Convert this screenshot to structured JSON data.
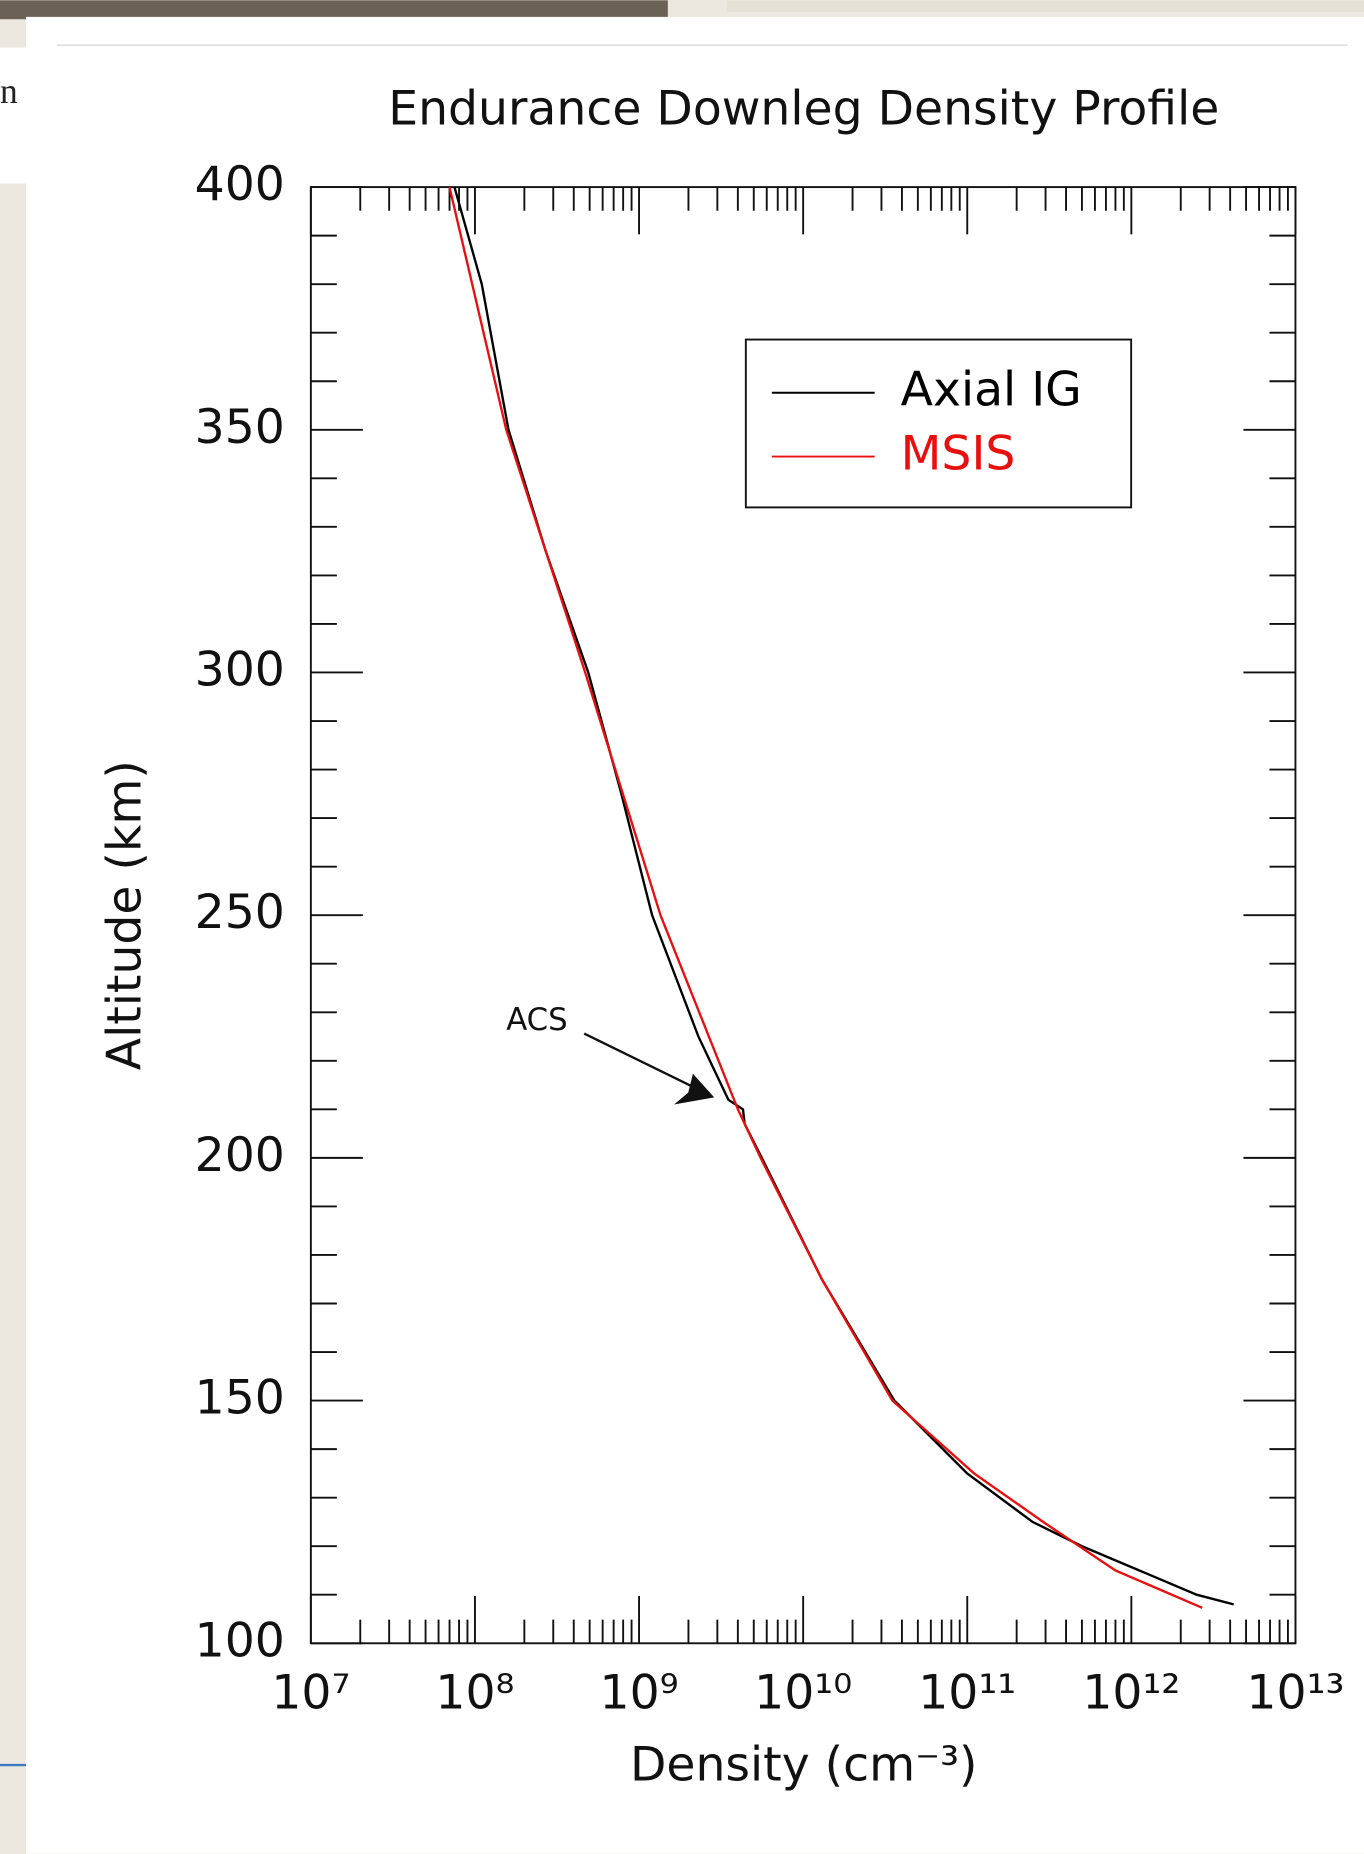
{
  "fragments": {
    "side_text": "n"
  },
  "chart_data": {
    "type": "line",
    "title": "Endurance Downleg Density Profile",
    "x_label": "Density (cm⁻³)",
    "y_label": "Altitude (km)",
    "x_log": true,
    "xlim": [
      10000000,
      10000000000000
    ],
    "xticks": [
      {
        "value": 10000000,
        "label": "10⁷"
      },
      {
        "value": 100000000,
        "label": "10⁸"
      },
      {
        "value": 1000000000,
        "label": "10⁹"
      },
      {
        "value": 10000000000,
        "label": "10¹⁰"
      },
      {
        "value": 100000000000,
        "label": "10¹¹"
      },
      {
        "value": 1000000000000,
        "label": "10¹²"
      },
      {
        "value": 10000000000000,
        "label": "10¹³"
      }
    ],
    "ylim": [
      100,
      400
    ],
    "yticks": [
      100,
      150,
      200,
      250,
      300,
      350,
      400
    ],
    "grid": false,
    "legend": "upper right",
    "annotations": [
      {
        "text": "ACS",
        "x": 4000000000,
        "y": 211
      }
    ],
    "series": [
      {
        "name": "Axial IG",
        "color": "#000000",
        "x": [
          75000000,
          110000000,
          160000000,
          270000000,
          490000000,
          780000000,
          1200000000,
          2300000000,
          3500000000,
          4300000000,
          4400000000,
          5600000000,
          13000000000,
          36000000000,
          100000000000,
          250000000000,
          500000000000,
          2500000000000,
          4200000000000
        ],
        "values": [
          400,
          380,
          350,
          325,
          300,
          275,
          250,
          225,
          212,
          210,
          207,
          200,
          175,
          150,
          135,
          125,
          120,
          110,
          108
        ]
      },
      {
        "name": "MSIS",
        "color": "#e8100f",
        "x": [
          70000000,
          155000000,
          470000000,
          1350000000,
          4000000000,
          5500000000,
          13000000000,
          35000000000,
          110000000000,
          290000000000,
          800000000000,
          2700000000000
        ],
        "values": [
          400,
          350,
          300,
          250,
          210,
          200,
          175,
          150,
          135,
          125,
          115,
          107.3
        ]
      }
    ]
  }
}
